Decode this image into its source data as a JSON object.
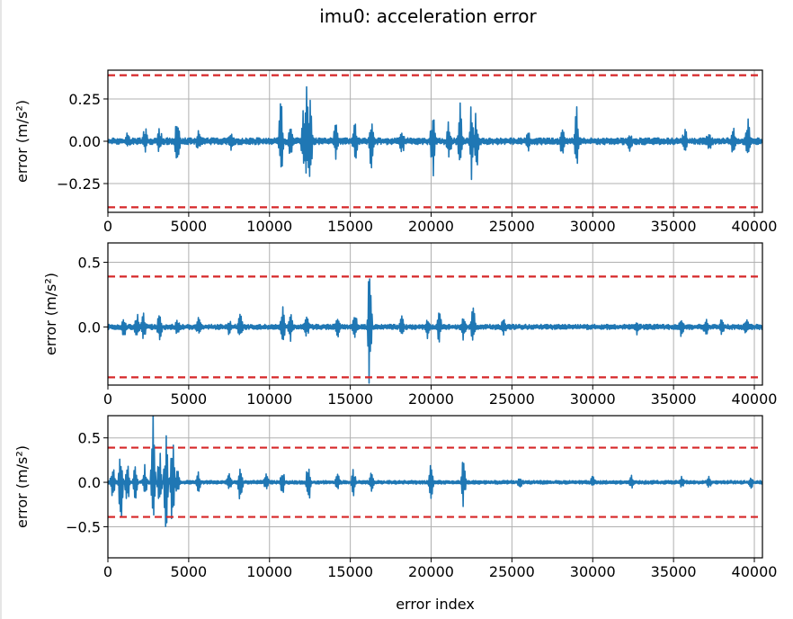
{
  "chart_data": {
    "title": "imu0: acceleration error",
    "xlabel": "error index",
    "grid": true,
    "threshold_color": "#d62728",
    "series_color": "#1f77b4",
    "subplots": [
      {
        "type": "line",
        "ylabel": "error (m/s²)",
        "xlim": [
          0,
          40500
        ],
        "ylim": [
          -0.42,
          0.42
        ],
        "xticks": [
          "0",
          "5000",
          "10000",
          "15000",
          "20000",
          "25000",
          "30000",
          "35000",
          "40000"
        ],
        "yticks": [
          {
            "value": 0.25,
            "label": "0.25"
          },
          {
            "value": 0.0,
            "label": "0.00"
          },
          {
            "value": -0.25,
            "label": "−0.25"
          }
        ],
        "threshold": 0.39,
        "noise": 0.02,
        "bursts": [
          {
            "x": 1200,
            "amp": 0.04
          },
          {
            "x": 2300,
            "amp": 0.08
          },
          {
            "x": 3200,
            "amp": 0.07
          },
          {
            "x": 4300,
            "amp": 0.2
          },
          {
            "x": 5600,
            "amp": 0.06
          },
          {
            "x": 7600,
            "amp": 0.05
          },
          {
            "x": 10700,
            "amp": 0.26
          },
          {
            "x": 11300,
            "amp": 0.09
          },
          {
            "x": 12100,
            "amp": 0.25
          },
          {
            "x": 12300,
            "amp": 0.34
          },
          {
            "x": 12500,
            "amp": 0.32
          },
          {
            "x": 14100,
            "amp": 0.1
          },
          {
            "x": 15300,
            "amp": 0.12
          },
          {
            "x": 16300,
            "amp": 0.18
          },
          {
            "x": 18200,
            "amp": 0.08
          },
          {
            "x": 20100,
            "amp": 0.24
          },
          {
            "x": 21100,
            "amp": 0.13
          },
          {
            "x": 21800,
            "amp": 0.22
          },
          {
            "x": 22500,
            "amp": 0.25
          },
          {
            "x": 22800,
            "amp": 0.2
          },
          {
            "x": 26000,
            "amp": 0.06
          },
          {
            "x": 28100,
            "amp": 0.08
          },
          {
            "x": 29000,
            "amp": 0.2
          },
          {
            "x": 32300,
            "amp": 0.05
          },
          {
            "x": 35700,
            "amp": 0.07
          },
          {
            "x": 37200,
            "amp": 0.08
          },
          {
            "x": 38700,
            "amp": 0.08
          },
          {
            "x": 39600,
            "amp": 0.14
          }
        ]
      },
      {
        "type": "line",
        "ylabel": "error (m/s²)",
        "xlim": [
          0,
          40500
        ],
        "ylim": [
          -0.45,
          0.65
        ],
        "xticks": [
          "0",
          "5000",
          "10000",
          "15000",
          "20000",
          "25000",
          "30000",
          "35000",
          "40000"
        ],
        "yticks": [
          {
            "value": 0.5,
            "label": "0.5"
          },
          {
            "value": 0.0,
            "label": "0.0"
          }
        ],
        "threshold": 0.39,
        "noise": 0.02,
        "bursts": [
          {
            "x": 1000,
            "amp": 0.07
          },
          {
            "x": 1800,
            "amp": 0.1
          },
          {
            "x": 2200,
            "amp": 0.12
          },
          {
            "x": 3200,
            "amp": 0.12
          },
          {
            "x": 4300,
            "amp": 0.07
          },
          {
            "x": 5600,
            "amp": 0.07
          },
          {
            "x": 7500,
            "amp": 0.05
          },
          {
            "x": 8200,
            "amp": 0.12
          },
          {
            "x": 10800,
            "amp": 0.2
          },
          {
            "x": 11300,
            "amp": 0.1
          },
          {
            "x": 12300,
            "amp": 0.07
          },
          {
            "x": 14200,
            "amp": 0.11
          },
          {
            "x": 15300,
            "amp": 0.13
          },
          {
            "x": 16200,
            "amp": 0.58
          },
          {
            "x": 18200,
            "amp": 0.08
          },
          {
            "x": 19800,
            "amp": 0.09
          },
          {
            "x": 20500,
            "amp": 0.12
          },
          {
            "x": 22000,
            "amp": 0.1
          },
          {
            "x": 22600,
            "amp": 0.17
          },
          {
            "x": 24500,
            "amp": 0.06
          },
          {
            "x": 32700,
            "amp": 0.05
          },
          {
            "x": 35500,
            "amp": 0.07
          },
          {
            "x": 37000,
            "amp": 0.06
          },
          {
            "x": 38000,
            "amp": 0.07
          },
          {
            "x": 39500,
            "amp": 0.05
          }
        ]
      },
      {
        "type": "line",
        "ylabel": "error (m/s²)",
        "xlim": [
          0,
          40500
        ],
        "ylim": [
          -0.85,
          0.75
        ],
        "xticks": [
          "0",
          "5000",
          "10000",
          "15000",
          "20000",
          "25000",
          "30000",
          "35000",
          "40000"
        ],
        "yticks": [
          {
            "value": 0.5,
            "label": "0.5"
          },
          {
            "value": 0.0,
            "label": "0.0"
          },
          {
            "value": -0.5,
            "label": "−0.5"
          }
        ],
        "threshold": 0.39,
        "noise": 0.02,
        "bursts": [
          {
            "x": 300,
            "amp": 0.25
          },
          {
            "x": 800,
            "amp": 0.5
          },
          {
            "x": 1200,
            "amp": 0.3
          },
          {
            "x": 1700,
            "amp": 0.22
          },
          {
            "x": 2300,
            "amp": 0.2
          },
          {
            "x": 2800,
            "amp": 0.8
          },
          {
            "x": 3200,
            "amp": 0.4
          },
          {
            "x": 3600,
            "amp": 0.68
          },
          {
            "x": 4000,
            "amp": 0.6
          },
          {
            "x": 4300,
            "amp": 0.15
          },
          {
            "x": 5600,
            "amp": 0.12
          },
          {
            "x": 7500,
            "amp": 0.1
          },
          {
            "x": 8200,
            "amp": 0.28
          },
          {
            "x": 9800,
            "amp": 0.08
          },
          {
            "x": 10800,
            "amp": 0.15
          },
          {
            "x": 12400,
            "amp": 0.3
          },
          {
            "x": 14200,
            "amp": 0.1
          },
          {
            "x": 15200,
            "amp": 0.15
          },
          {
            "x": 16300,
            "amp": 0.1
          },
          {
            "x": 20000,
            "amp": 0.27
          },
          {
            "x": 22000,
            "amp": 0.3
          },
          {
            "x": 25500,
            "amp": 0.05
          },
          {
            "x": 30000,
            "amp": 0.07
          },
          {
            "x": 32400,
            "amp": 0.06
          },
          {
            "x": 35500,
            "amp": 0.05
          },
          {
            "x": 37200,
            "amp": 0.05
          },
          {
            "x": 39800,
            "amp": 0.07
          }
        ]
      }
    ]
  }
}
